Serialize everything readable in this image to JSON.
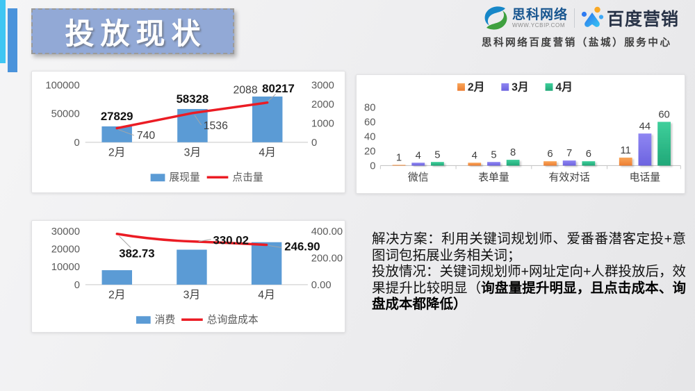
{
  "slide": {
    "title": "投放现状"
  },
  "header": {
    "sciko": {
      "name": "思科网络",
      "url": "WWW.YCBIP.COM"
    },
    "baidu": {
      "name": "百度营销"
    },
    "subtitle": "思科网络百度营销（盐城）服务中心"
  },
  "colors": {
    "bar_blue": "#5B9BD5",
    "line_red": "#EB1C24",
    "accent_cyan": "#3FC6F3",
    "accent_blue": "#4A93DB",
    "title_bg": "#92A9D6",
    "series_feb": "#ED7D31",
    "series_mar": "#6C63E0",
    "series_apr": "#21A878",
    "axis_text": "#595959",
    "leader_gray": "#A6A6A6"
  },
  "chart_data": [
    {
      "type": "bar",
      "subtype": "combo-bar-line",
      "categories": [
        "2月",
        "3月",
        "4月"
      ],
      "bar_series": {
        "name": "展现量",
        "values": [
          27829,
          58328,
          80217
        ]
      },
      "line_series": {
        "name": "点击量",
        "values": [
          740,
          1536,
          2088
        ]
      },
      "left_axis": {
        "ticks": [
          0,
          50000,
          100000
        ],
        "max": 100000
      },
      "right_axis": {
        "ticks": [
          0,
          1000,
          2000,
          3000
        ],
        "max": 3000
      },
      "legend_position": "bottom",
      "grid": false
    },
    {
      "type": "bar",
      "subtype": "grouped-bar",
      "categories": [
        "微信",
        "表单量",
        "有效对话",
        "电话量"
      ],
      "series": [
        {
          "name": "2月",
          "values": [
            1,
            4,
            6,
            11
          ]
        },
        {
          "name": "3月",
          "values": [
            4,
            5,
            7,
            44
          ]
        },
        {
          "name": "4月",
          "values": [
            5,
            8,
            6,
            60
          ]
        }
      ],
      "y_axis": {
        "ticks": [
          0,
          20,
          40,
          60,
          80
        ],
        "max": 80
      },
      "legend_position": "top",
      "grid": false
    },
    {
      "type": "bar",
      "subtype": "combo-bar-line",
      "categories": [
        "2月",
        "3月",
        "4月"
      ],
      "bar_series": {
        "name": "消费",
        "values": [
          8100,
          19600,
          23800
        ],
        "values_estimated": true,
        "labels_shown": false
      },
      "line_series": {
        "name": "总询盘成本",
        "values": [
          382.73,
          330.02,
          246.9
        ]
      },
      "left_axis": {
        "ticks": [
          0,
          10000,
          20000,
          30000
        ],
        "max": 30000
      },
      "right_axis": {
        "ticks": [
          "0.00",
          "200.00",
          "400.00"
        ],
        "tick_values": [
          0,
          200,
          400
        ],
        "max": 400
      },
      "legend_position": "bottom",
      "grid": false
    }
  ],
  "solution": {
    "line1": "解决方案：利用关键词规划师、爱番番潜客定投+意图词包拓展业务相关词；",
    "line2_prefix": "投放情况：关键词规划师+网址定向+人群投放后，效果提升比较明显（",
    "line2_bold": "询盘量提升明显，且点击成本、询盘成本都降低",
    "line2_suffix": "）"
  }
}
